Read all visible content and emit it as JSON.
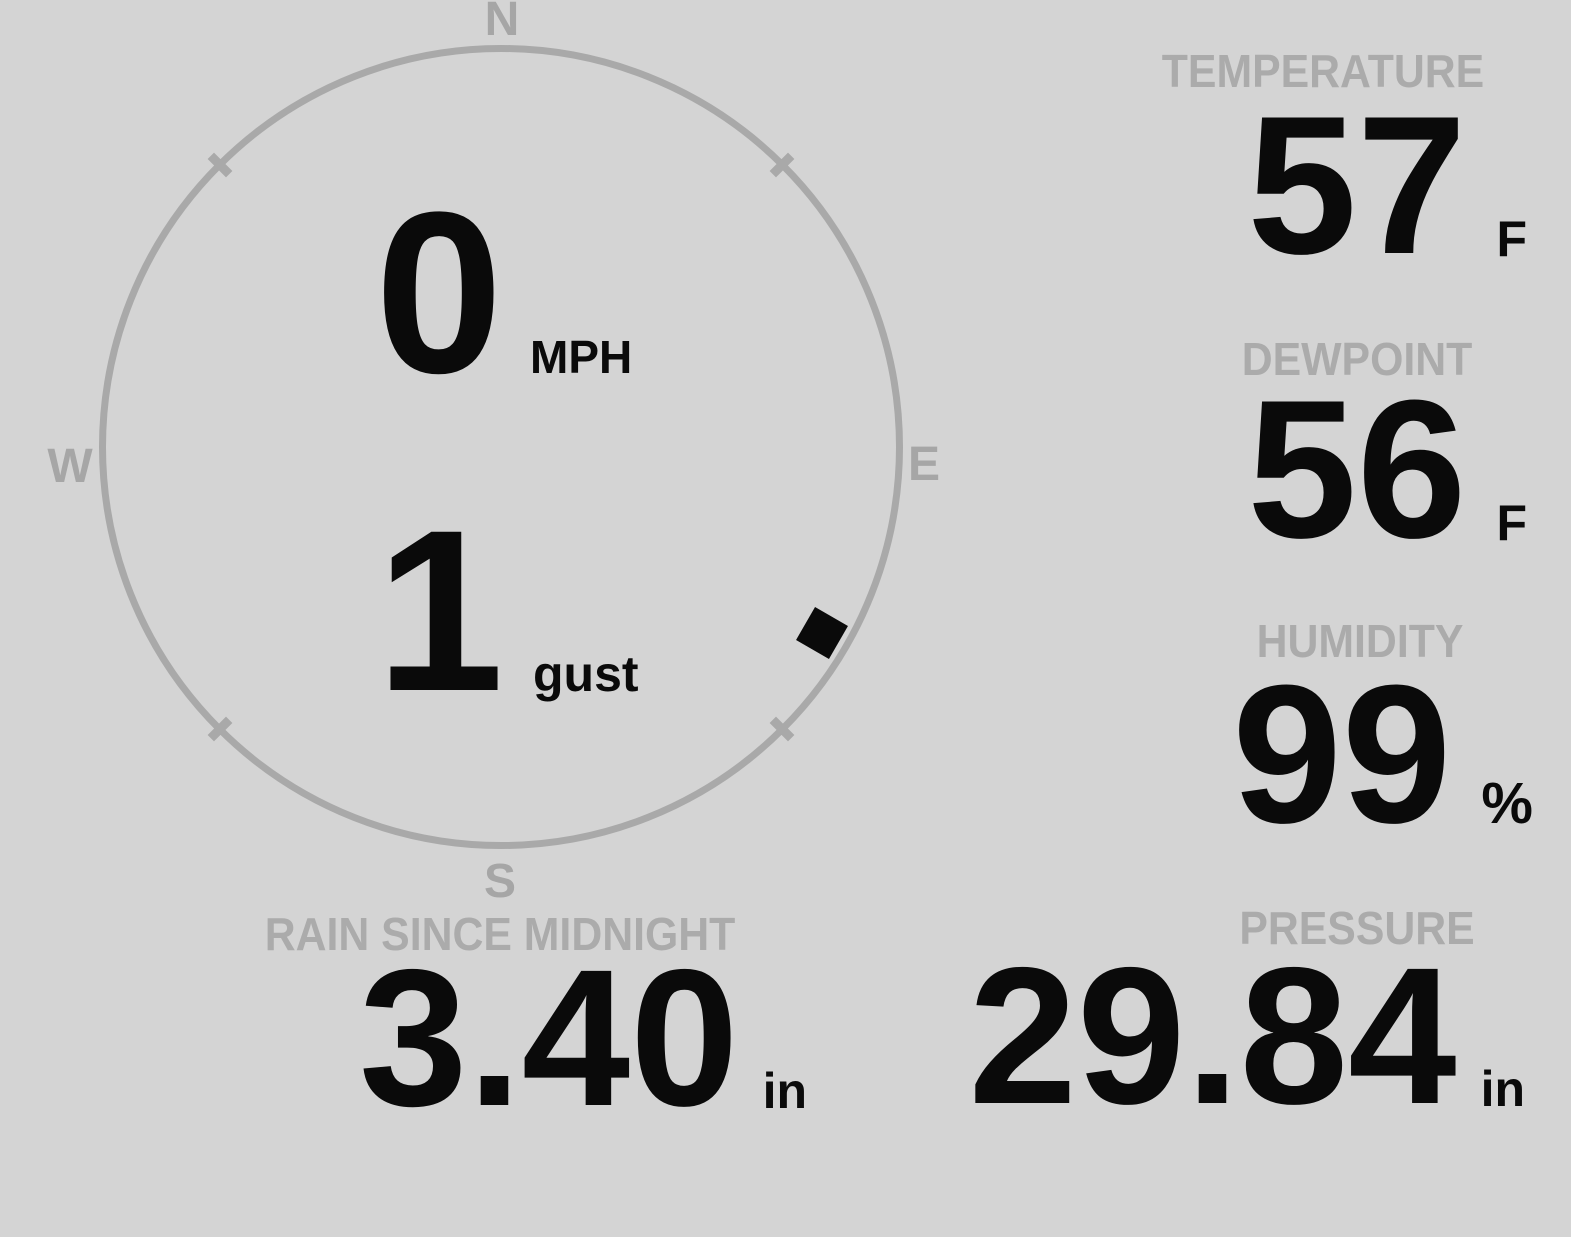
{
  "colors": {
    "background": "#d4d4d4",
    "ring_gray": "#a9a9a9",
    "label_gray": "#ababab",
    "value_black": "#0a0a0a",
    "marker_black": "#0a0a0a"
  },
  "compass": {
    "labels": {
      "north": "N",
      "east": "E",
      "south": "S",
      "west": "W"
    },
    "wind_speed": "0",
    "wind_speed_unit": "MPH",
    "gust": "1",
    "gust_unit": "gust",
    "direction_deg": 120
  },
  "metrics": {
    "temperature": {
      "label": "TEMPERATURE",
      "value": "57",
      "unit": "F"
    },
    "dewpoint": {
      "label": "DEWPOINT",
      "value": "56",
      "unit": "F"
    },
    "humidity": {
      "label": "HUMIDITY",
      "value": "99",
      "unit": "%"
    },
    "rain": {
      "label": "RAIN SINCE MIDNIGHT",
      "value": "3.40",
      "unit": "in"
    },
    "pressure": {
      "label": "PRESSURE",
      "value": "29.84",
      "unit": "in"
    }
  }
}
